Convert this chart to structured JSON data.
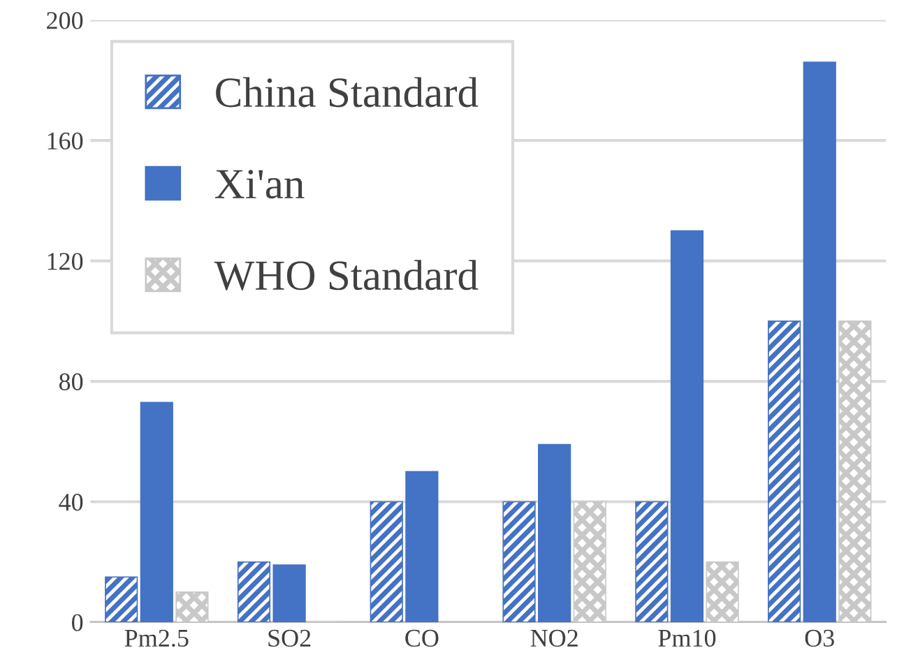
{
  "chart_data": {
    "type": "bar",
    "categories": [
      "Pm2.5",
      "SO2",
      "CO",
      "NO2",
      "Pm10",
      "O3"
    ],
    "series": [
      {
        "name": "China Standard",
        "color": "#4472c4",
        "values": [
          15,
          20,
          40,
          40,
          40,
          100
        ]
      },
      {
        "name": "Xi'an",
        "color": "#4472c4",
        "values": [
          73,
          19,
          50,
          59,
          130,
          186
        ]
      },
      {
        "name": "WHO Standard",
        "color": "#c8c8c8",
        "values": [
          10,
          0,
          null,
          40,
          20,
          100
        ]
      }
    ],
    "ylim": [
      0,
      200
    ],
    "yticks": [
      0,
      40,
      80,
      120,
      160,
      200
    ],
    "grid": "y",
    "legend": "top left"
  }
}
